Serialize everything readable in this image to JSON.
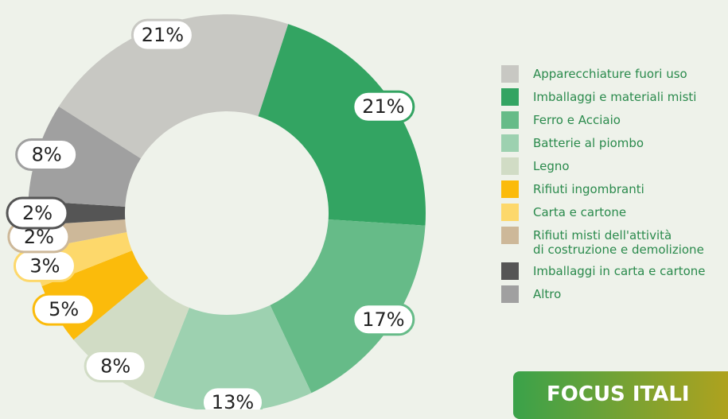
{
  "chart_data": {
    "type": "donut",
    "categories": [
      "Apparecchiature fuori uso",
      "Imballaggi e materiali misti",
      "Ferro e Acciaio",
      "Batterie al piombo",
      "Legno",
      "Rifiuti ingombranti",
      "Carta e cartone",
      "Rifiuti misti dell'attività\ndi costruzione e demolizione",
      "Imballaggi in carta e cartone",
      "Altro"
    ],
    "values": [
      21,
      21,
      17,
      13,
      8,
      5,
      3,
      2,
      2,
      8
    ],
    "value_labels": [
      "21%",
      "21%",
      "17%",
      "13%",
      "8%",
      "5%",
      "3%",
      "2%",
      "2%",
      "8%"
    ],
    "colors": [
      "#c8c8c3",
      "#33a462",
      "#66bb88",
      "#9dd1b0",
      "#d1dcc5",
      "#fbbb0b",
      "#fdd86b",
      "#cdb899",
      "#555555",
      "#a0a0a0"
    ],
    "legend": "right"
  },
  "banner": "FOCUS ITALI"
}
